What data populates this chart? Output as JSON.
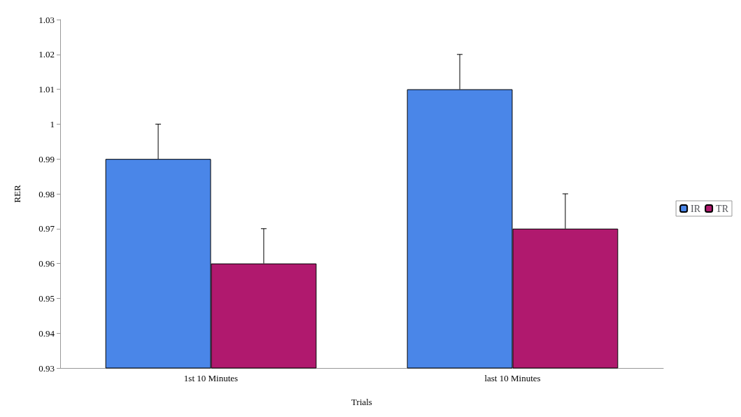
{
  "chart_data": {
    "type": "bar",
    "xlabel": "Trials",
    "ylabel": "RER",
    "categories": [
      "1st 10 Minutes",
      "last 10 Minutes"
    ],
    "series": [
      {
        "name": "IR",
        "color": "#4a86e8",
        "values": [
          0.99,
          1.01
        ],
        "errors": [
          [
            0.99,
            1.0
          ],
          [
            1.01,
            1.02
          ]
        ]
      },
      {
        "name": "TR",
        "color": "#b0196e",
        "values": [
          0.96,
          0.97
        ],
        "errors": [
          [
            0.96,
            0.97
          ],
          [
            0.97,
            0.98
          ]
        ]
      }
    ],
    "ylim": [
      0.93,
      1.03
    ],
    "yticks": [
      0.93,
      0.94,
      0.95,
      0.96,
      0.97,
      0.98,
      0.99,
      1,
      1.01,
      1.02,
      1.03
    ],
    "grid": false,
    "legend": "right"
  }
}
